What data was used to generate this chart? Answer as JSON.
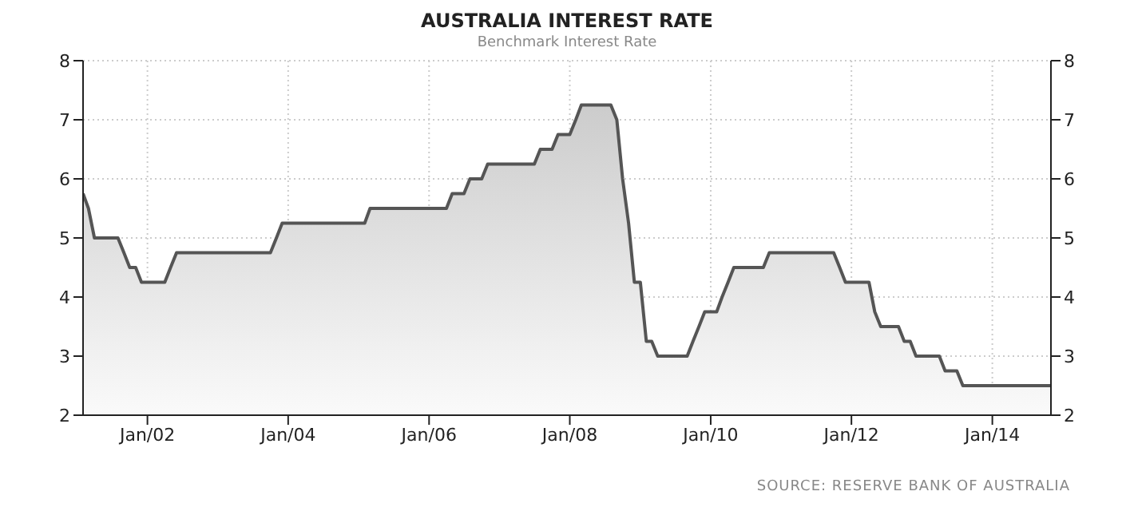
{
  "chart_data": {
    "type": "area",
    "title": "AUSTRALIA INTEREST RATE",
    "subtitle": "Benchmark Interest Rate",
    "annotations": [
      "SOURCE: RESERVE BANK OF AUSTRALIA"
    ],
    "x": [
      "2001-02",
      "2001-03",
      "2001-04",
      "2001-08",
      "2001-09",
      "2001-10",
      "2001-11",
      "2001-12",
      "2002-04",
      "2002-05",
      "2002-06",
      "2003-10",
      "2003-11",
      "2003-12",
      "2005-02",
      "2005-03",
      "2006-04",
      "2006-05",
      "2006-07",
      "2006-08",
      "2006-10",
      "2006-11",
      "2007-07",
      "2007-08",
      "2007-10",
      "2007-11",
      "2008-01",
      "2008-02",
      "2008-03",
      "2008-08",
      "2008-09",
      "2008-10",
      "2008-11",
      "2008-12",
      "2009-01",
      "2009-02",
      "2009-03",
      "2009-04",
      "2009-09",
      "2009-10",
      "2009-11",
      "2009-12",
      "2010-02",
      "2010-03",
      "2010-04",
      "2010-05",
      "2010-10",
      "2010-11",
      "2011-10",
      "2011-11",
      "2011-12",
      "2012-04",
      "2012-05",
      "2012-06",
      "2012-09",
      "2012-10",
      "2012-11",
      "2012-12",
      "2013-04",
      "2013-05",
      "2013-07",
      "2013-08",
      "2014-11"
    ],
    "series": [
      {
        "color": "#555555",
        "values": [
          5.75,
          5.5,
          5.0,
          5.0,
          4.75,
          4.5,
          4.5,
          4.25,
          4.25,
          4.5,
          4.75,
          4.75,
          5.0,
          5.25,
          5.25,
          5.5,
          5.5,
          5.75,
          5.75,
          6.0,
          6.0,
          6.25,
          6.25,
          6.5,
          6.5,
          6.75,
          6.75,
          7.0,
          7.25,
          7.25,
          7.0,
          6.0,
          5.25,
          4.25,
          4.25,
          3.25,
          3.25,
          3.0,
          3.0,
          3.25,
          3.5,
          3.75,
          3.75,
          4.0,
          4.25,
          4.5,
          4.5,
          4.75,
          4.75,
          4.5,
          4.25,
          4.25,
          3.75,
          3.5,
          3.5,
          3.25,
          3.25,
          3.0,
          3.0,
          2.75,
          2.75,
          2.5,
          2.5
        ]
      }
    ],
    "xlim": [
      "2001-02",
      "2014-11"
    ],
    "xticks": [
      {
        "value": "2002-01",
        "label": "Jan/02"
      },
      {
        "value": "2004-01",
        "label": "Jan/04"
      },
      {
        "value": "2006-01",
        "label": "Jan/06"
      },
      {
        "value": "2008-01",
        "label": "Jan/08"
      },
      {
        "value": "2010-01",
        "label": "Jan/10"
      },
      {
        "value": "2012-01",
        "label": "Jan/12"
      },
      {
        "value": "2014-01",
        "label": "Jan/14"
      }
    ],
    "ylim": [
      2,
      8
    ],
    "yticks": [
      2,
      3,
      4,
      5,
      6,
      7,
      8
    ],
    "y2lim": [
      2,
      8
    ],
    "y2ticks": [
      2,
      3,
      4,
      5,
      6,
      7,
      8
    ],
    "grid": true,
    "legend": false,
    "marker": "none",
    "line_style": "solid"
  }
}
